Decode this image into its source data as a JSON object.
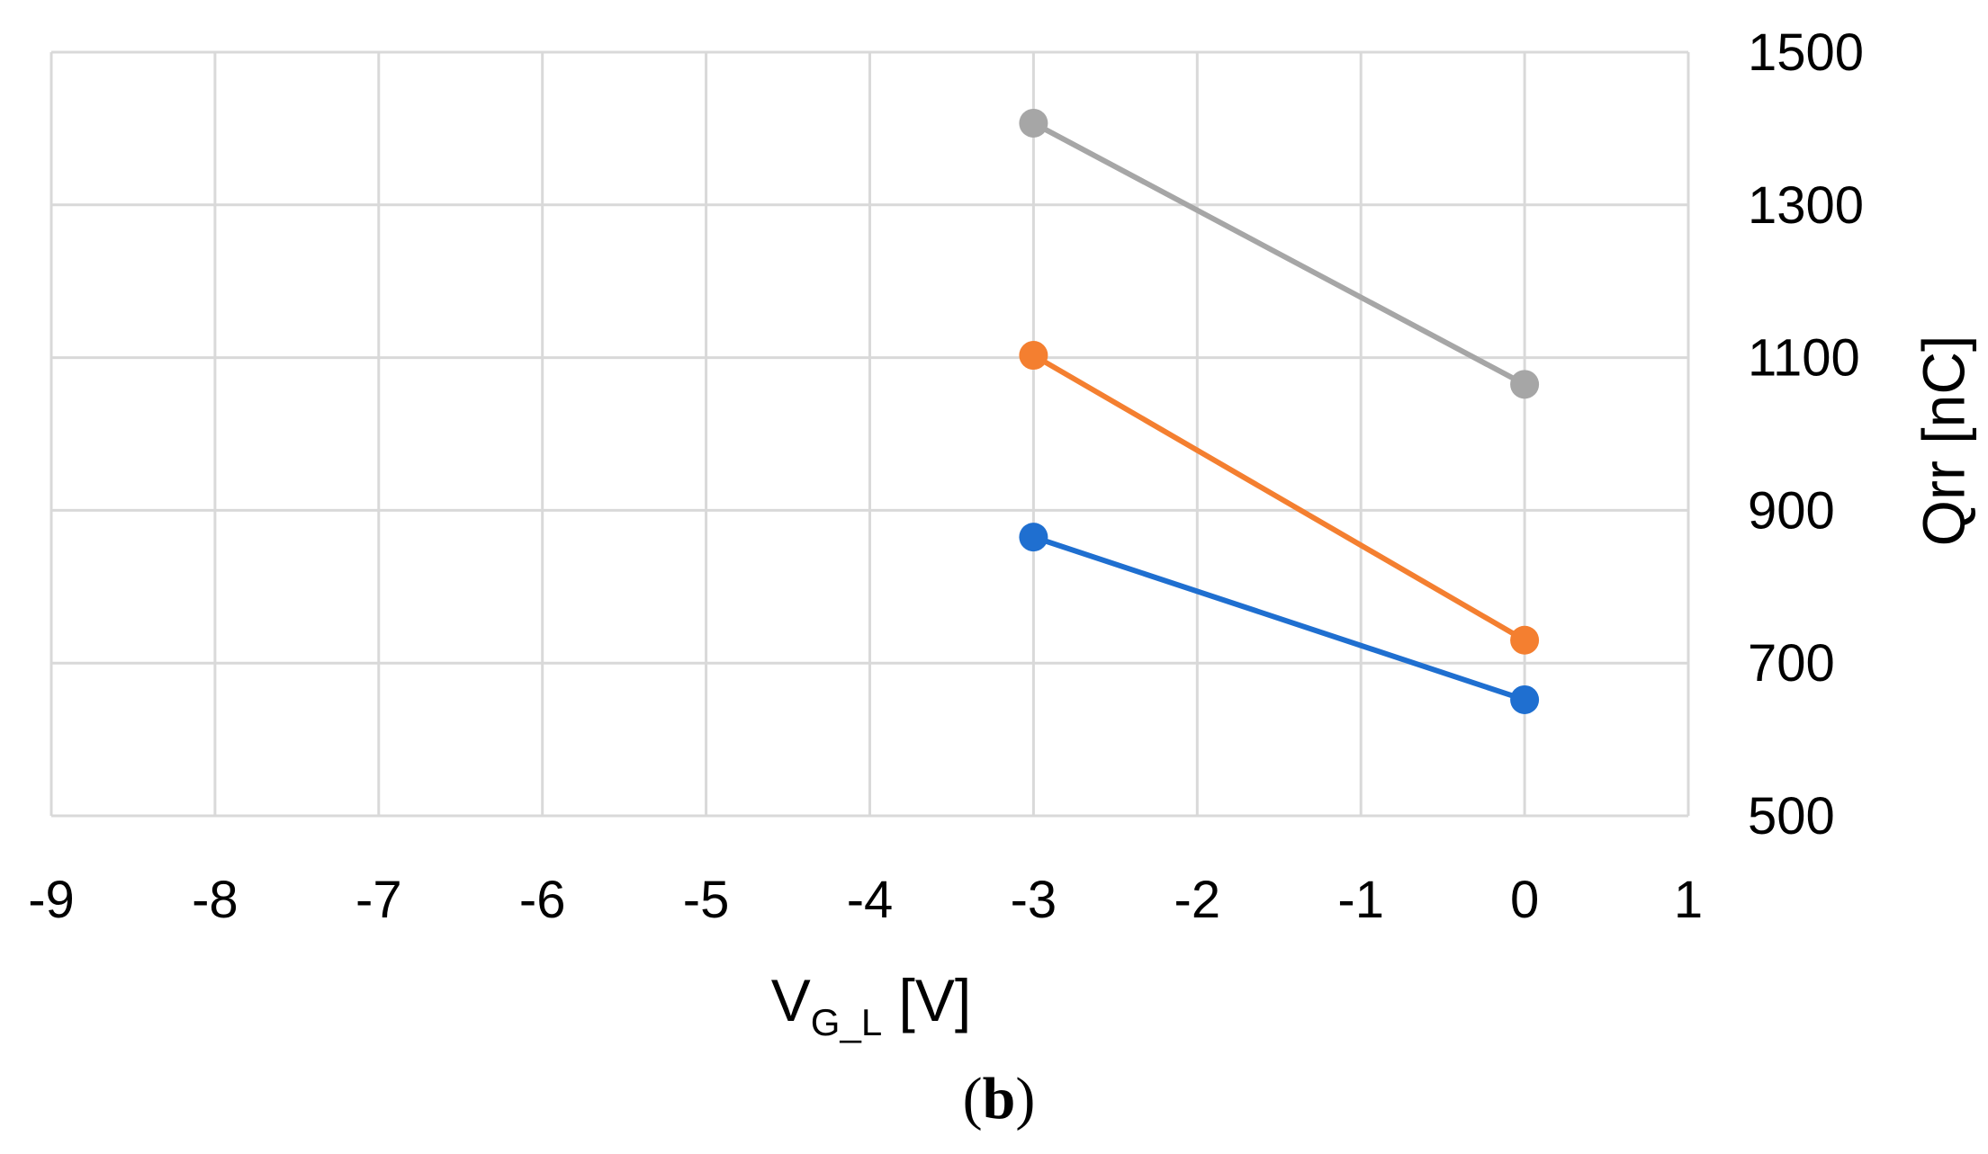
{
  "chart_data": {
    "type": "line",
    "xlabel": {
      "main": "V",
      "subscript": "G_L",
      "unit": " [V]"
    },
    "ylabel": "Qrr [nC]",
    "xlim": [
      -9,
      1
    ],
    "ylim": [
      500,
      1500
    ],
    "x_ticks": [
      -9,
      -8,
      -7,
      -6,
      -5,
      -4,
      -3,
      -2,
      -1,
      0,
      1
    ],
    "y_ticks": [
      500,
      700,
      900,
      1100,
      1300,
      1500
    ],
    "y_axis_side": "right",
    "grid": true,
    "legend": "none",
    "series": [
      {
        "color": "#1f6fd0",
        "points": [
          [
            -3,
            865
          ],
          [
            0,
            652
          ]
        ]
      },
      {
        "color": "#f47f30",
        "points": [
          [
            -3,
            1103
          ],
          [
            0,
            730
          ]
        ]
      },
      {
        "color": "#a6a6a6",
        "points": [
          [
            -3,
            1407
          ],
          [
            0,
            1065
          ]
        ]
      }
    ]
  },
  "caption": {
    "open": "(",
    "letter": "b",
    "close": ")"
  }
}
